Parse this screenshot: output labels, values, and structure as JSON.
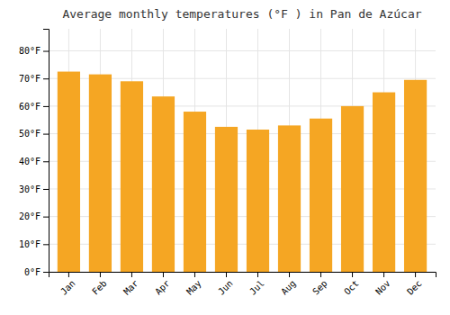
{
  "chart_data": {
    "type": "bar",
    "title": "Average monthly temperatures (°F ) in Pan de Azúcar",
    "categories": [
      "Jan",
      "Feb",
      "Mar",
      "Apr",
      "May",
      "Jun",
      "Jul",
      "Aug",
      "Sep",
      "Oct",
      "Nov",
      "Dec"
    ],
    "values": [
      72.5,
      71.5,
      69.0,
      63.5,
      58.0,
      52.5,
      51.5,
      53.0,
      55.5,
      60.0,
      65.0,
      69.5
    ],
    "color": "#F5A623",
    "ylim": [
      0,
      88
    ],
    "yticks": [
      {
        "value": 0,
        "label": "0°F"
      },
      {
        "value": 10,
        "label": "10°F"
      },
      {
        "value": 20,
        "label": "20°F"
      },
      {
        "value": 30,
        "label": "30°F"
      },
      {
        "value": 40,
        "label": "40°F"
      },
      {
        "value": 50,
        "label": "50°F"
      },
      {
        "value": 60,
        "label": "60°F"
      },
      {
        "value": 70,
        "label": "70°F"
      },
      {
        "value": 80,
        "label": "80°F"
      }
    ],
    "grid": true
  }
}
